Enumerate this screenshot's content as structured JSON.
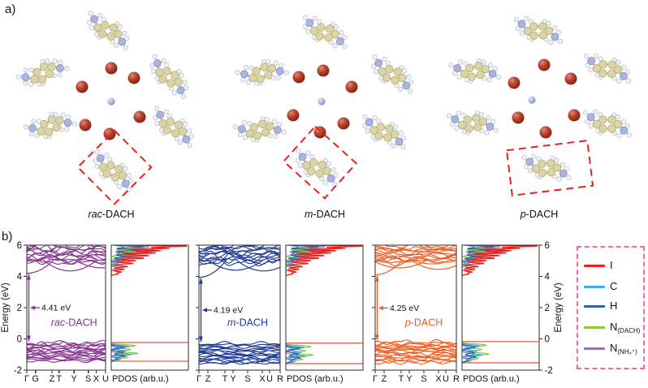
{
  "panel_a": {
    "label": "a)",
    "structures": [
      {
        "label_prefix": "rac",
        "label_suffix": "-DACH"
      },
      {
        "label_prefix": "m",
        "label_suffix": "-DACH"
      },
      {
        "label_prefix": "p",
        "label_suffix": "-DACH"
      }
    ],
    "atom_colors": {
      "I": "#a83226",
      "N": "#a9b5dd",
      "C": "#dbd4a6",
      "H": "#f2f3f8"
    },
    "highlight_box_color": "#e8211d"
  },
  "panel_b": {
    "label": "b)",
    "ylabel_left": "Energy (eV)",
    "ylabel_right": "Energy (eV)",
    "legend": {
      "border_color": "#f468a9",
      "entries": [
        {
          "label": "I",
          "color": "#e8211d"
        },
        {
          "label": "C",
          "color": "#33b1e6"
        },
        {
          "label": "H",
          "color": "#2d61ae"
        },
        {
          "label": "N",
          "sub": "(DACH)",
          "color": "#8cc63e"
        },
        {
          "label": "N",
          "sub": "(NH₄⁺)",
          "color": "#9d6fb5"
        }
      ]
    }
  },
  "chart_data": [
    {
      "type": "line",
      "title": "rac-DACH",
      "title_prefix": "rac",
      "title_suffix": "-DACH",
      "color": "#86338f",
      "ylabel": "Energy (eV)",
      "ylim": [
        -2,
        6
      ],
      "yticks": [
        6,
        4,
        2,
        0,
        -2
      ],
      "k_ticks": [
        {
          "label": "Γ",
          "pos": 0
        },
        {
          "label": "G",
          "pos": 0.11
        },
        {
          "label": "Z",
          "pos": 0.32
        },
        {
          "label": "T",
          "pos": 0.41
        },
        {
          "label": "Y",
          "pos": 0.6
        },
        {
          "label": "S",
          "pos": 0.78
        },
        {
          "label": "X",
          "pos": 0.88
        },
        {
          "label": "U",
          "pos": 1
        }
      ],
      "bandgap_eV": 4.41,
      "bandgap_label": "4.41 eV",
      "vbm_eV": -0.21,
      "cbm_eV": 4.2,
      "valence_band_range_eV": [
        -1.45,
        -0.21
      ],
      "conduction_band_range_eV": [
        4.2,
        6
      ],
      "cb_dips": [
        {
          "k": 0,
          "e": 4.2
        },
        {
          "k": 0.55,
          "e": 4.35
        },
        {
          "k": 0.95,
          "e": 4.55
        }
      ],
      "pdos": {
        "xlabel": "PDOS (arb.u.)",
        "species": [
          "I",
          "C",
          "H",
          "N(DACH)",
          "N(NH4+)"
        ]
      }
    },
    {
      "type": "line",
      "title": "m-DACH",
      "title_prefix": "m",
      "title_suffix": "-DACH",
      "color": "#1e3a92",
      "ylabel": "Energy (eV)",
      "ylim": [
        -2,
        6
      ],
      "yticks": [
        6,
        4,
        2,
        0,
        -2
      ],
      "k_ticks": [
        {
          "label": "Γ",
          "pos": 0
        },
        {
          "label": "Z",
          "pos": 0.11
        },
        {
          "label": "T",
          "pos": 0.32
        },
        {
          "label": "Y",
          "pos": 0.42
        },
        {
          "label": "S",
          "pos": 0.6
        },
        {
          "label": "X",
          "pos": 0.78
        },
        {
          "label": "U",
          "pos": 0.87
        },
        {
          "label": "R",
          "pos": 1
        }
      ],
      "bandgap_eV": 4.19,
      "bandgap_label": "4.19 eV",
      "vbm_eV": -0.25,
      "cbm_eV": 3.94,
      "valence_band_range_eV": [
        -1.6,
        -0.25
      ],
      "conduction_band_range_eV": [
        3.94,
        6
      ],
      "cb_dips": [
        {
          "k": 0,
          "e": 3.94
        },
        {
          "k": 0.45,
          "e": 4.4
        },
        {
          "k": 0.8,
          "e": 4.35
        }
      ],
      "pdos": {
        "xlabel": "PDOS (arb.u.)",
        "species": [
          "I",
          "C",
          "H",
          "N(DACH)",
          "N(NH4+)"
        ]
      }
    },
    {
      "type": "line",
      "title": "p-DACH",
      "title_prefix": "p",
      "title_suffix": "-DACH",
      "color": "#f05a1e",
      "ylabel": "Energy (eV)",
      "ylim": [
        -2,
        6
      ],
      "yticks": [
        6,
        4,
        2,
        0,
        -2
      ],
      "k_ticks": [
        {
          "label": "Γ",
          "pos": 0
        },
        {
          "label": "Z",
          "pos": 0.11
        },
        {
          "label": "T",
          "pos": 0.32
        },
        {
          "label": "Y",
          "pos": 0.42
        },
        {
          "label": "S",
          "pos": 0.6
        },
        {
          "label": "X",
          "pos": 0.78
        },
        {
          "label": "U",
          "pos": 0.87
        },
        {
          "label": "R",
          "pos": 1
        }
      ],
      "bandgap_eV": 4.25,
      "bandgap_label": "4.25 eV",
      "vbm_eV": -0.15,
      "cbm_eV": 4.1,
      "valence_band_range_eV": [
        -1.55,
        -0.15
      ],
      "conduction_band_range_eV": [
        4.1,
        6
      ],
      "cb_dips": [
        {
          "k": 0,
          "e": 4.1
        },
        {
          "k": 0.3,
          "e": 4.55
        },
        {
          "k": 0.78,
          "e": 4.45
        }
      ],
      "pdos": {
        "xlabel": "PDOS (arb.u.)",
        "species": [
          "I",
          "C",
          "H",
          "N(DACH)",
          "N(NH4+)"
        ]
      }
    }
  ]
}
